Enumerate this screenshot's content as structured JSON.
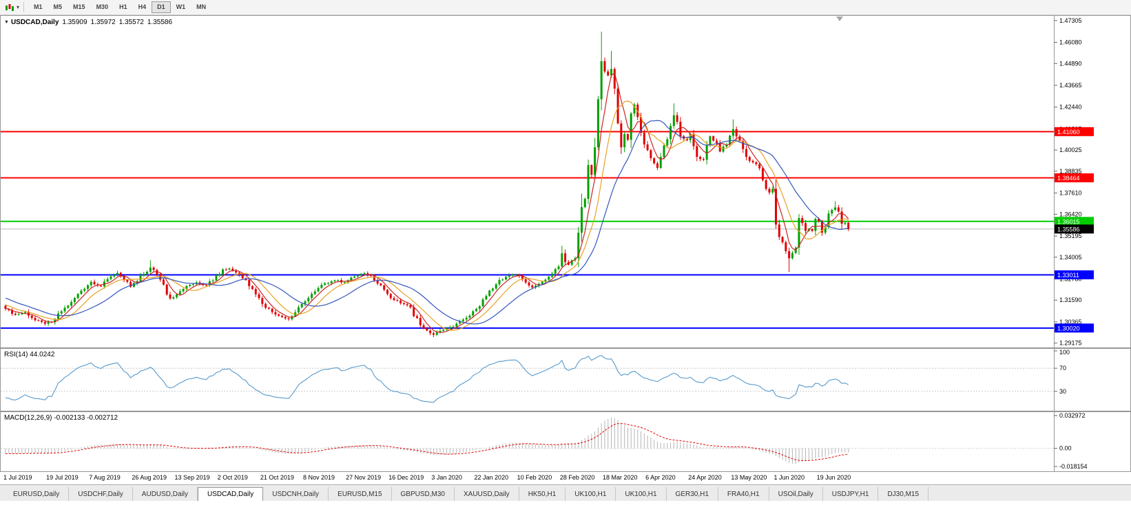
{
  "toolbar": {
    "timeframes": [
      {
        "label": "M1",
        "active": false
      },
      {
        "label": "M5",
        "active": false
      },
      {
        "label": "M15",
        "active": false
      },
      {
        "label": "M30",
        "active": false
      },
      {
        "label": "H1",
        "active": false
      },
      {
        "label": "H4",
        "active": false
      },
      {
        "label": "D1",
        "active": true
      },
      {
        "label": "W1",
        "active": false
      },
      {
        "label": "MN",
        "active": false
      }
    ]
  },
  "chart": {
    "symbol_title": "USDCAD,Daily",
    "open": "1.35909",
    "high": "1.35972",
    "low": "1.35572",
    "close": "1.35586"
  },
  "chart_data": {
    "type": "candlestick",
    "symbol": "USDCAD",
    "timeframe": "D1",
    "x_labels": [
      "1 Jul 2019",
      "19 Jul 2019",
      "7 Aug 2019",
      "26 Aug 2019",
      "13 Sep 2019",
      "2 Oct 2019",
      "21 Oct 2019",
      "8 Nov 2019",
      "27 Nov 2019",
      "16 Dec 2019",
      "3 Jan 2020",
      "22 Jan 2020",
      "10 Feb 2020",
      "28 Feb 2020",
      "18 Mar 2020",
      "6 Apr 2020",
      "24 Apr 2020",
      "13 May 2020",
      "1 Jun 2020",
      "19 Jun 2020"
    ],
    "trading_days_per_label": 13,
    "price_ticks": [
      "1.47305",
      "1.46080",
      "1.44890",
      "1.43665",
      "1.42440",
      "1.41215",
      "1.40025",
      "1.38835",
      "1.37610",
      "1.36420",
      "1.35195",
      "1.34005",
      "1.32780",
      "1.31590",
      "1.30365",
      "1.29175"
    ],
    "y_domain": [
      1.2893,
      1.4757
    ],
    "prehistory": {
      "days": 60,
      "start": 1.356,
      "end": 1.311
    },
    "anchors": [
      [
        0,
        1.311
      ],
      [
        3,
        1.3076
      ],
      [
        6,
        1.3092
      ],
      [
        9,
        1.3046
      ],
      [
        12,
        1.3026
      ],
      [
        14,
        1.3034
      ],
      [
        17,
        1.3096
      ],
      [
        20,
        1.3148
      ],
      [
        23,
        1.3212
      ],
      [
        26,
        1.3262
      ],
      [
        29,
        1.3236
      ],
      [
        32,
        1.3292
      ],
      [
        34,
        1.3312
      ],
      [
        36,
        1.3272
      ],
      [
        38,
        1.3234
      ],
      [
        40,
        1.3266
      ],
      [
        42,
        1.3306
      ],
      [
        44,
        1.3342
      ],
      [
        46,
        1.3302
      ],
      [
        48,
        1.3246
      ],
      [
        50,
        1.3168
      ],
      [
        52,
        1.3192
      ],
      [
        55,
        1.3238
      ],
      [
        58,
        1.3258
      ],
      [
        61,
        1.3242
      ],
      [
        64,
        1.3296
      ],
      [
        66,
        1.3332
      ],
      [
        68,
        1.3336
      ],
      [
        70,
        1.3314
      ],
      [
        73,
        1.3272
      ],
      [
        76,
        1.3192
      ],
      [
        78,
        1.3138
      ],
      [
        81,
        1.3092
      ],
      [
        84,
        1.3064
      ],
      [
        86,
        1.3052
      ],
      [
        88,
        1.309
      ],
      [
        91,
        1.3152
      ],
      [
        94,
        1.3208
      ],
      [
        97,
        1.3254
      ],
      [
        100,
        1.327
      ],
      [
        103,
        1.326
      ],
      [
        106,
        1.3292
      ],
      [
        109,
        1.331
      ],
      [
        111,
        1.3296
      ],
      [
        114,
        1.3242
      ],
      [
        117,
        1.317
      ],
      [
        120,
        1.3142
      ],
      [
        123,
        1.3118
      ],
      [
        126,
        1.3018
      ],
      [
        128,
        1.2988
      ],
      [
        130,
        1.2964
      ],
      [
        133,
        1.2992
      ],
      [
        136,
        1.301
      ],
      [
        139,
        1.305
      ],
      [
        141,
        1.3072
      ],
      [
        143,
        1.311
      ],
      [
        146,
        1.3182
      ],
      [
        148,
        1.3224
      ],
      [
        150,
        1.3272
      ],
      [
        152,
        1.329
      ],
      [
        154,
        1.3302
      ],
      [
        156,
        1.3294
      ],
      [
        158,
        1.3258
      ],
      [
        160,
        1.323
      ],
      [
        162,
        1.325
      ],
      [
        164,
        1.3274
      ],
      [
        166,
        1.3308
      ],
      [
        168,
        1.3348
      ],
      [
        169,
        1.3422
      ],
      [
        171,
        1.3358
      ],
      [
        173,
        1.3394
      ],
      [
        175,
        1.3682
      ],
      [
        176,
        1.3728
      ],
      [
        177,
        1.3918
      ],
      [
        178,
        1.3864
      ],
      [
        179,
        1.4018
      ],
      [
        180,
        1.4288
      ],
      [
        181,
        1.4502
      ],
      [
        182,
        1.4444
      ],
      [
        183,
        1.4422
      ],
      [
        184,
        1.4458
      ],
      [
        185,
        1.4348
      ],
      [
        186,
        1.4152
      ],
      [
        187,
        1.4018
      ],
      [
        188,
        1.4092
      ],
      [
        189,
        1.406
      ],
      [
        190,
        1.4208
      ],
      [
        191,
        1.4258
      ],
      [
        192,
        1.4188
      ],
      [
        193,
        1.41
      ],
      [
        194,
        1.4034
      ],
      [
        195,
        1.4002
      ],
      [
        197,
        1.3928
      ],
      [
        198,
        1.3902
      ],
      [
        200,
        1.4028
      ],
      [
        202,
        1.4138
      ],
      [
        203,
        1.4198
      ],
      [
        205,
        1.408
      ],
      [
        207,
        1.4058
      ],
      [
        208,
        1.4094
      ],
      [
        210,
        1.3964
      ],
      [
        212,
        1.3948
      ],
      [
        214,
        1.408
      ],
      [
        216,
        1.4042
      ],
      [
        217,
        1.3994
      ],
      [
        219,
        1.4034
      ],
      [
        221,
        1.412
      ],
      [
        223,
        1.4054
      ],
      [
        225,
        1.3964
      ],
      [
        227,
        1.3934
      ],
      [
        229,
        1.39
      ],
      [
        230,
        1.3834
      ],
      [
        231,
        1.3784
      ],
      [
        232,
        1.3764
      ],
      [
        233,
        1.3784
      ],
      [
        234,
        1.3584
      ],
      [
        235,
        1.3514
      ],
      [
        236,
        1.3484
      ],
      [
        237,
        1.3434
      ],
      [
        238,
        1.3394
      ],
      [
        239,
        1.3424
      ],
      [
        240,
        1.3454
      ],
      [
        241,
        1.362
      ],
      [
        242,
        1.3592
      ],
      [
        243,
        1.3548
      ],
      [
        244,
        1.3558
      ],
      [
        245,
        1.3548
      ],
      [
        246,
        1.3616
      ],
      [
        247,
        1.3604
      ],
      [
        248,
        1.3538
      ],
      [
        249,
        1.3568
      ],
      [
        250,
        1.3646
      ],
      [
        251,
        1.3666
      ],
      [
        252,
        1.368
      ],
      [
        253,
        1.3657
      ],
      [
        254,
        1.3588
      ],
      [
        255,
        1.3594
      ],
      [
        256,
        1.35586
      ]
    ],
    "extremes": [
      {
        "day": 12,
        "low": 1.3016
      },
      {
        "day": 44,
        "high": 1.3383
      },
      {
        "day": 86,
        "low": 1.3042
      },
      {
        "day": 130,
        "low": 1.2951
      },
      {
        "day": 169,
        "high": 1.3464
      },
      {
        "day": 175,
        "high": 1.3758
      },
      {
        "day": 181,
        "high": 1.4668
      },
      {
        "day": 184,
        "high": 1.456
      },
      {
        "day": 203,
        "high": 1.4265
      },
      {
        "day": 221,
        "high": 1.4175
      },
      {
        "day": 238,
        "low": 1.3317
      },
      {
        "day": 252,
        "high": 1.3715
      }
    ],
    "h_lines": [
      {
        "price": 1.4106,
        "label": "1.41060",
        "color": "#FF0000"
      },
      {
        "price": 1.38464,
        "label": "1.38464",
        "color": "#FF0000"
      },
      {
        "price": 1.36015,
        "label": "1.36015",
        "color": "#00CC00"
      },
      {
        "price": 1.33011,
        "label": "1.33011",
        "color": "#0000FF"
      },
      {
        "price": 1.3002,
        "label": "1.30020",
        "color": "#0000FF"
      }
    ],
    "current_price": {
      "value": 1.35586,
      "label": "1.35586",
      "color": "#000000"
    },
    "moving_averages": [
      {
        "type": "sma",
        "period": 5,
        "color": "#CC2222"
      },
      {
        "type": "sma",
        "period": 10,
        "color": "#E8A020"
      },
      {
        "type": "sma",
        "period": 20,
        "color": "#3355BB"
      }
    ],
    "indicators": {
      "rsi": {
        "label": "RSI(14) 44.0242",
        "period": 14,
        "value": 44.0242,
        "levels": [
          {
            "value": 100,
            "label": "100",
            "line": false
          },
          {
            "value": 70,
            "label": "70",
            "line": true
          },
          {
            "value": 30,
            "label": "30",
            "line": true
          }
        ]
      },
      "macd": {
        "label": "MACD(12,26,9) -0.002133 -0.002712",
        "fast": 12,
        "slow": 26,
        "signal": 9,
        "main_value": -0.002133,
        "signal_value": -0.002712,
        "axis": [
          {
            "value": 0.032972,
            "label": "0.032972"
          },
          {
            "value": 0,
            "label": "0.00"
          },
          {
            "value": -0.018154,
            "label": "-0.018154"
          }
        ]
      }
    },
    "colors": {
      "candle_up": "#00A000",
      "candle_down": "#E00000",
      "rsi_line": "#5599CC",
      "macd_hist": "#B4B4B4",
      "macd_signal": "#E00000",
      "current_line": "#B8B8B8",
      "frame": "#969696"
    }
  },
  "tabs": [
    {
      "label": "EURUSD,Daily",
      "active": false
    },
    {
      "label": "USDCHF,Daily",
      "active": false
    },
    {
      "label": "AUDUSD,Daily",
      "active": false
    },
    {
      "label": "USDCAD,Daily",
      "active": true
    },
    {
      "label": "USDCNH,Daily",
      "active": false
    },
    {
      "label": "EURUSD,M15",
      "active": false
    },
    {
      "label": "GBPUSD,M30",
      "active": false
    },
    {
      "label": "XAUUSD,Daily",
      "active": false
    },
    {
      "label": "HK50,H1",
      "active": false
    },
    {
      "label": "UK100,H1",
      "active": false
    },
    {
      "label": "UK100,H1",
      "active": false
    },
    {
      "label": "GER30,H1",
      "active": false
    },
    {
      "label": "FRA40,H1",
      "active": false
    },
    {
      "label": "USOil,Daily",
      "active": false
    },
    {
      "label": "USDJPY,H1",
      "active": false
    },
    {
      "label": "DJ30,M15",
      "active": false
    }
  ]
}
